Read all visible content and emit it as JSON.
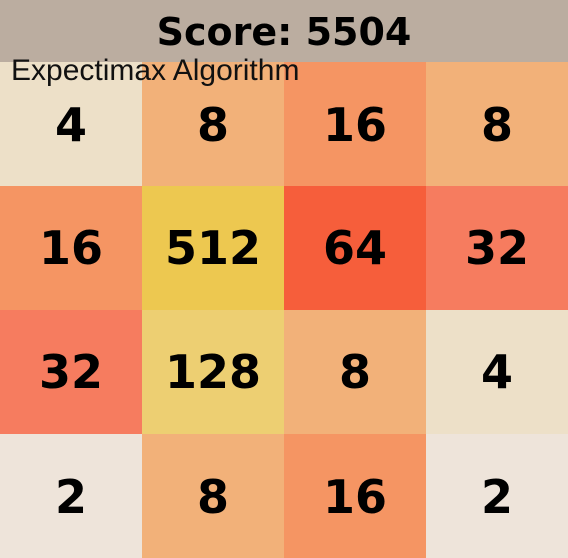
{
  "header": {
    "score_text": "Score: 5504"
  },
  "algorithm_label": "Expectimax Algorithm",
  "board": {
    "rows": [
      [
        "4",
        "8",
        "16",
        "8"
      ],
      [
        "16",
        "512",
        "64",
        "32"
      ],
      [
        "32",
        "128",
        "8",
        "4"
      ],
      [
        "2",
        "8",
        "16",
        "2"
      ]
    ]
  },
  "tile_colors": {
    "2": "#eee4da",
    "4": "#ede0c8",
    "8": "#f2b179",
    "16": "#f59563",
    "32": "#f67c5f",
    "64": "#f65e3b",
    "128": "#edcf72",
    "512": "#edc850"
  },
  "colors": {
    "header_background": "#bbada0"
  }
}
